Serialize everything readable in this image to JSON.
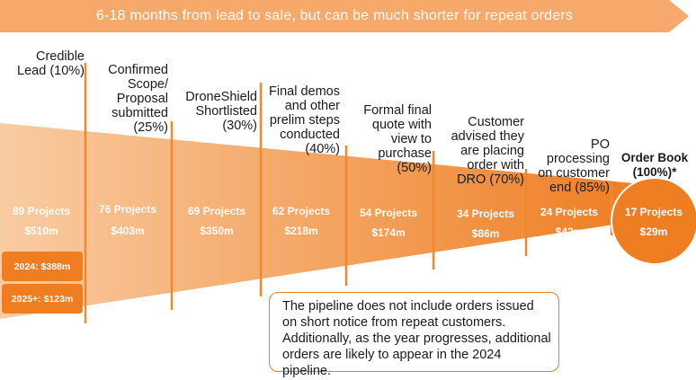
{
  "colors": {
    "arrow": "#f6a96a",
    "funnel_light": "#f9cca3",
    "funnel_dark": "#ef7d22",
    "divider": "#f0882e",
    "circle": "#ef7d22"
  },
  "header": {
    "arrow_text": "6-18 months from lead to sale, but can be much shorter for repeat orders"
  },
  "stages": [
    {
      "label": "Credible\nLead (10%)",
      "projects": "89 Projects",
      "value": "$510m"
    },
    {
      "label": "Confirmed\nScope/\nProposal\nsubmitted\n(25%)",
      "projects": "76 Projects",
      "value": "$403m"
    },
    {
      "label": "DroneShield\nShortlisted\n(30%)",
      "projects": "69 Projects",
      "value": "$350m"
    },
    {
      "label": "Final demos\nand other\nprelim steps\nconducted\n(40%)",
      "projects": "62 Projects",
      "value": "$218m"
    },
    {
      "label": "Formal final\nquote with\nview to\npurchase\n(50%)",
      "projects": "54 Projects",
      "value": "$174m"
    },
    {
      "label": "Customer\nadvised they\nare placing\norder with\nDRO (70%)",
      "projects": "34 Projects",
      "value": "$86m"
    },
    {
      "label": "PO\nprocessing\non customer\nend (85%)",
      "projects": "24 Projects",
      "value": "$42m"
    },
    {
      "label": "Order Book\n(100%)*",
      "projects": "17 Projects",
      "value": "$29m"
    }
  ],
  "breakdown": [
    {
      "text": "2024: $388m"
    },
    {
      "text": "2025+: $123m"
    }
  ],
  "note": {
    "text": "The pipeline does not include orders issued on short notice from repeat customers. Additionally, as the year progresses, additional orders are likely to appear in the 2024 pipeline."
  }
}
